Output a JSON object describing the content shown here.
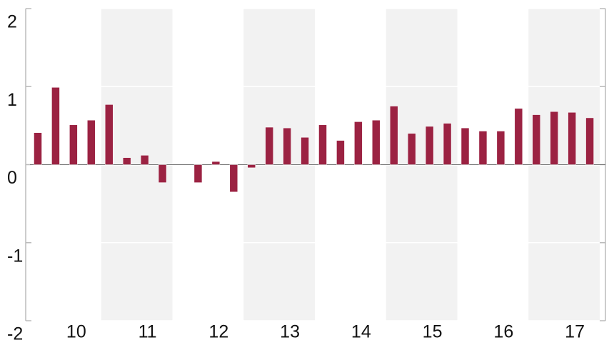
{
  "chart_data": {
    "type": "bar",
    "group_labels": [
      "10",
      "11",
      "12",
      "13",
      "14",
      "15",
      "16",
      "17"
    ],
    "categories": [
      null,
      null,
      null,
      null,
      null,
      null,
      null,
      null,
      null,
      null,
      null,
      null,
      null,
      null,
      null,
      null,
      null,
      null,
      null,
      null,
      null,
      null,
      null,
      null,
      null,
      null,
      null,
      null,
      null,
      null,
      null,
      null
    ],
    "values": [
      0.41,
      0.99,
      0.51,
      0.57,
      0.77,
      0.09,
      0.12,
      -0.23,
      0,
      -0.23,
      0.04,
      -0.35,
      -0.04,
      0.48,
      0.47,
      0.35,
      0.51,
      0.31,
      0.55,
      0.57,
      0.75,
      0.4,
      0.49,
      0.53,
      0.47,
      0.43,
      0.43,
      0.72,
      0.64,
      0.68,
      0.67,
      0.6
    ],
    "color": "#9b2242",
    "ylim": [
      -2,
      2
    ],
    "yticks": [
      -2,
      -1,
      0,
      1,
      2
    ],
    "grid": true
  }
}
